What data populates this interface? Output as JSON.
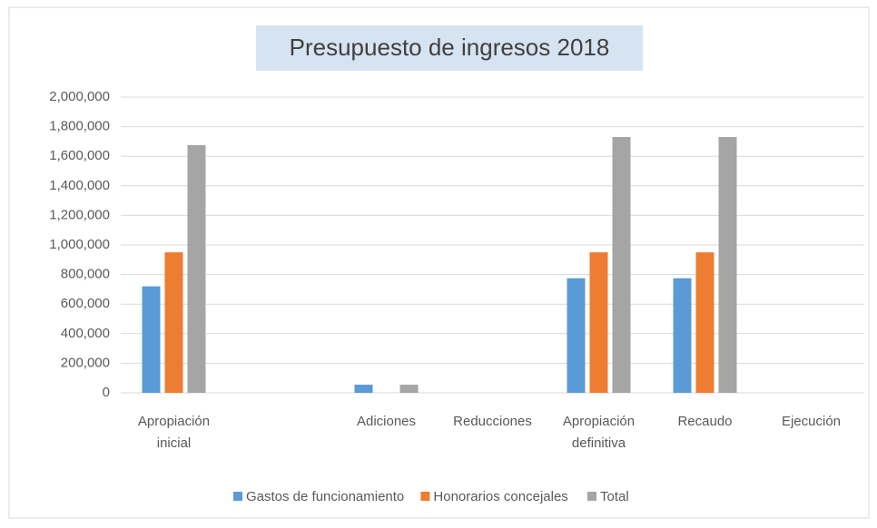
{
  "chart_data": {
    "type": "bar",
    "title": "Presupuesto de ingresos 2018",
    "categories": [
      "Apropiación inicial",
      null,
      "Adiciones",
      "Reducciones",
      "Apropiación definitiva",
      "Recaudo",
      "Ejecución"
    ],
    "series": [
      {
        "name": "Gastos de funcionamiento",
        "color": "#5b9bd5",
        "values": [
          720000,
          null,
          55000,
          0,
          775000,
          775000,
          0
        ]
      },
      {
        "name": "Honorarios concejales",
        "color": "#ed7d31",
        "values": [
          950000,
          null,
          0,
          0,
          950000,
          950000,
          0
        ]
      },
      {
        "name": "Total",
        "color": "#a5a5a5",
        "values": [
          1675000,
          null,
          55000,
          0,
          1730000,
          1730000,
          0
        ]
      }
    ],
    "ylim": [
      0,
      2000000
    ],
    "yticks": [
      0,
      {
        "value": 200000,
        "label": "200,000"
      },
      {
        "value": 400000,
        "label": "400,000"
      },
      {
        "value": 600000,
        "label": "600,000"
      },
      {
        "value": 800000,
        "label": "800,000"
      },
      {
        "value": 1000000,
        "label": "1,000,000"
      },
      {
        "value": 1200000,
        "label": "1,200,000"
      },
      {
        "value": 1400000,
        "label": "1,400,000"
      },
      {
        "value": 1600000,
        "label": "1,600,000"
      },
      {
        "value": 1800000,
        "label": "1,800,000"
      },
      {
        "value": 2000000,
        "label": "2,000,000"
      }
    ],
    "grid": true,
    "legend": "bottom"
  }
}
